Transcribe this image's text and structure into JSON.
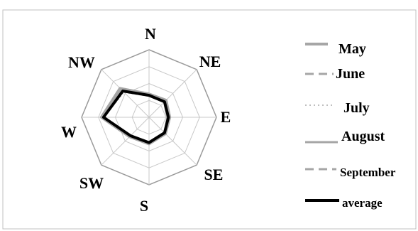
{
  "chart_data": {
    "type": "radar",
    "categories": [
      "N",
      "NE",
      "E",
      "SE",
      "S",
      "SW",
      "W",
      "NW"
    ],
    "rlim": [
      0,
      4
    ],
    "grid": true,
    "legend_position": "right",
    "series": [
      {
        "name": "May",
        "values": [
          1.3,
          1.3,
          1.1,
          1.35,
          1.55,
          1.55,
          2.75,
          2.3
        ],
        "color": "#a6a6a6",
        "dash": "solid",
        "width": 4
      },
      {
        "name": "June",
        "values": [
          1.35,
          1.35,
          1.1,
          1.3,
          1.5,
          1.6,
          2.8,
          2.25
        ],
        "color": "#a6a6a6",
        "dash": "dashed",
        "width": 3
      },
      {
        "name": "July",
        "values": [
          1.25,
          1.3,
          1.15,
          1.3,
          1.5,
          1.6,
          2.7,
          2.1
        ],
        "color": "#bfbfbf",
        "dash": "dotted",
        "width": 2
      },
      {
        "name": "August",
        "values": [
          1.4,
          1.45,
          1.25,
          1.4,
          1.6,
          1.65,
          2.85,
          2.45
        ],
        "color": "#a6a6a6",
        "dash": "solid",
        "width": 3
      },
      {
        "name": "September",
        "values": [
          1.35,
          1.4,
          1.2,
          1.35,
          1.55,
          1.6,
          2.75,
          2.3
        ],
        "color": "#a6a6a6",
        "dash": "dashed",
        "width": 3
      },
      {
        "name": "average",
        "values": [
          1.3,
          1.3,
          1.15,
          1.3,
          1.5,
          1.55,
          2.7,
          2.2
        ],
        "color": "#000000",
        "dash": "solid",
        "width": 4
      }
    ]
  }
}
